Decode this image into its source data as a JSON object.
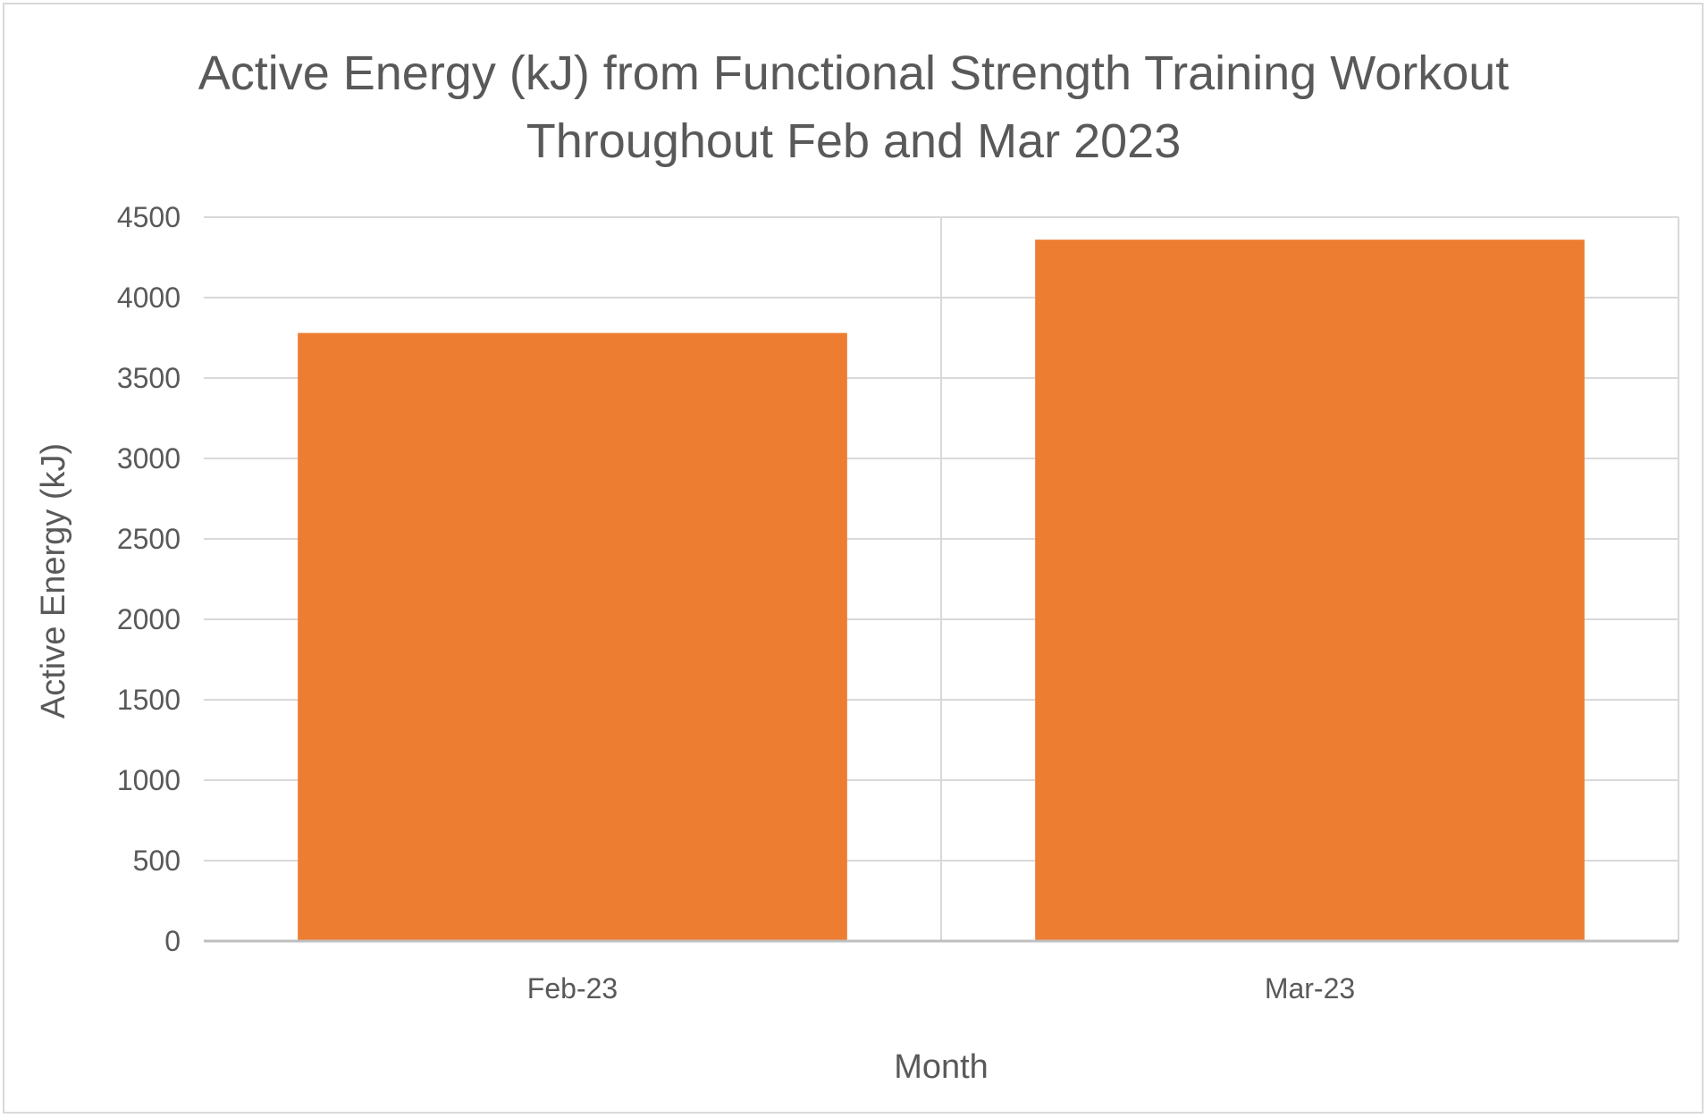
{
  "chart_data": {
    "type": "bar",
    "title_lines": [
      "Active Energy (kJ) from Functional Strength Training Workout",
      "Throughout Feb and Mar 2023"
    ],
    "categories": [
      "Feb-23",
      "Mar-23"
    ],
    "values": [
      3780,
      4360
    ],
    "xlabel": "Month",
    "ylabel": "Active Energy (kJ)",
    "ylim": [
      0,
      4500
    ],
    "ytick_step": 500,
    "yticks": [
      "0",
      "500",
      "1000",
      "1500",
      "2000",
      "2500",
      "3000",
      "3500",
      "4000",
      "4500"
    ],
    "grid": true,
    "legend": "none",
    "bar_color": "#ED7D31",
    "grid_color": "#D9D9D9",
    "text_color": "#595959"
  }
}
